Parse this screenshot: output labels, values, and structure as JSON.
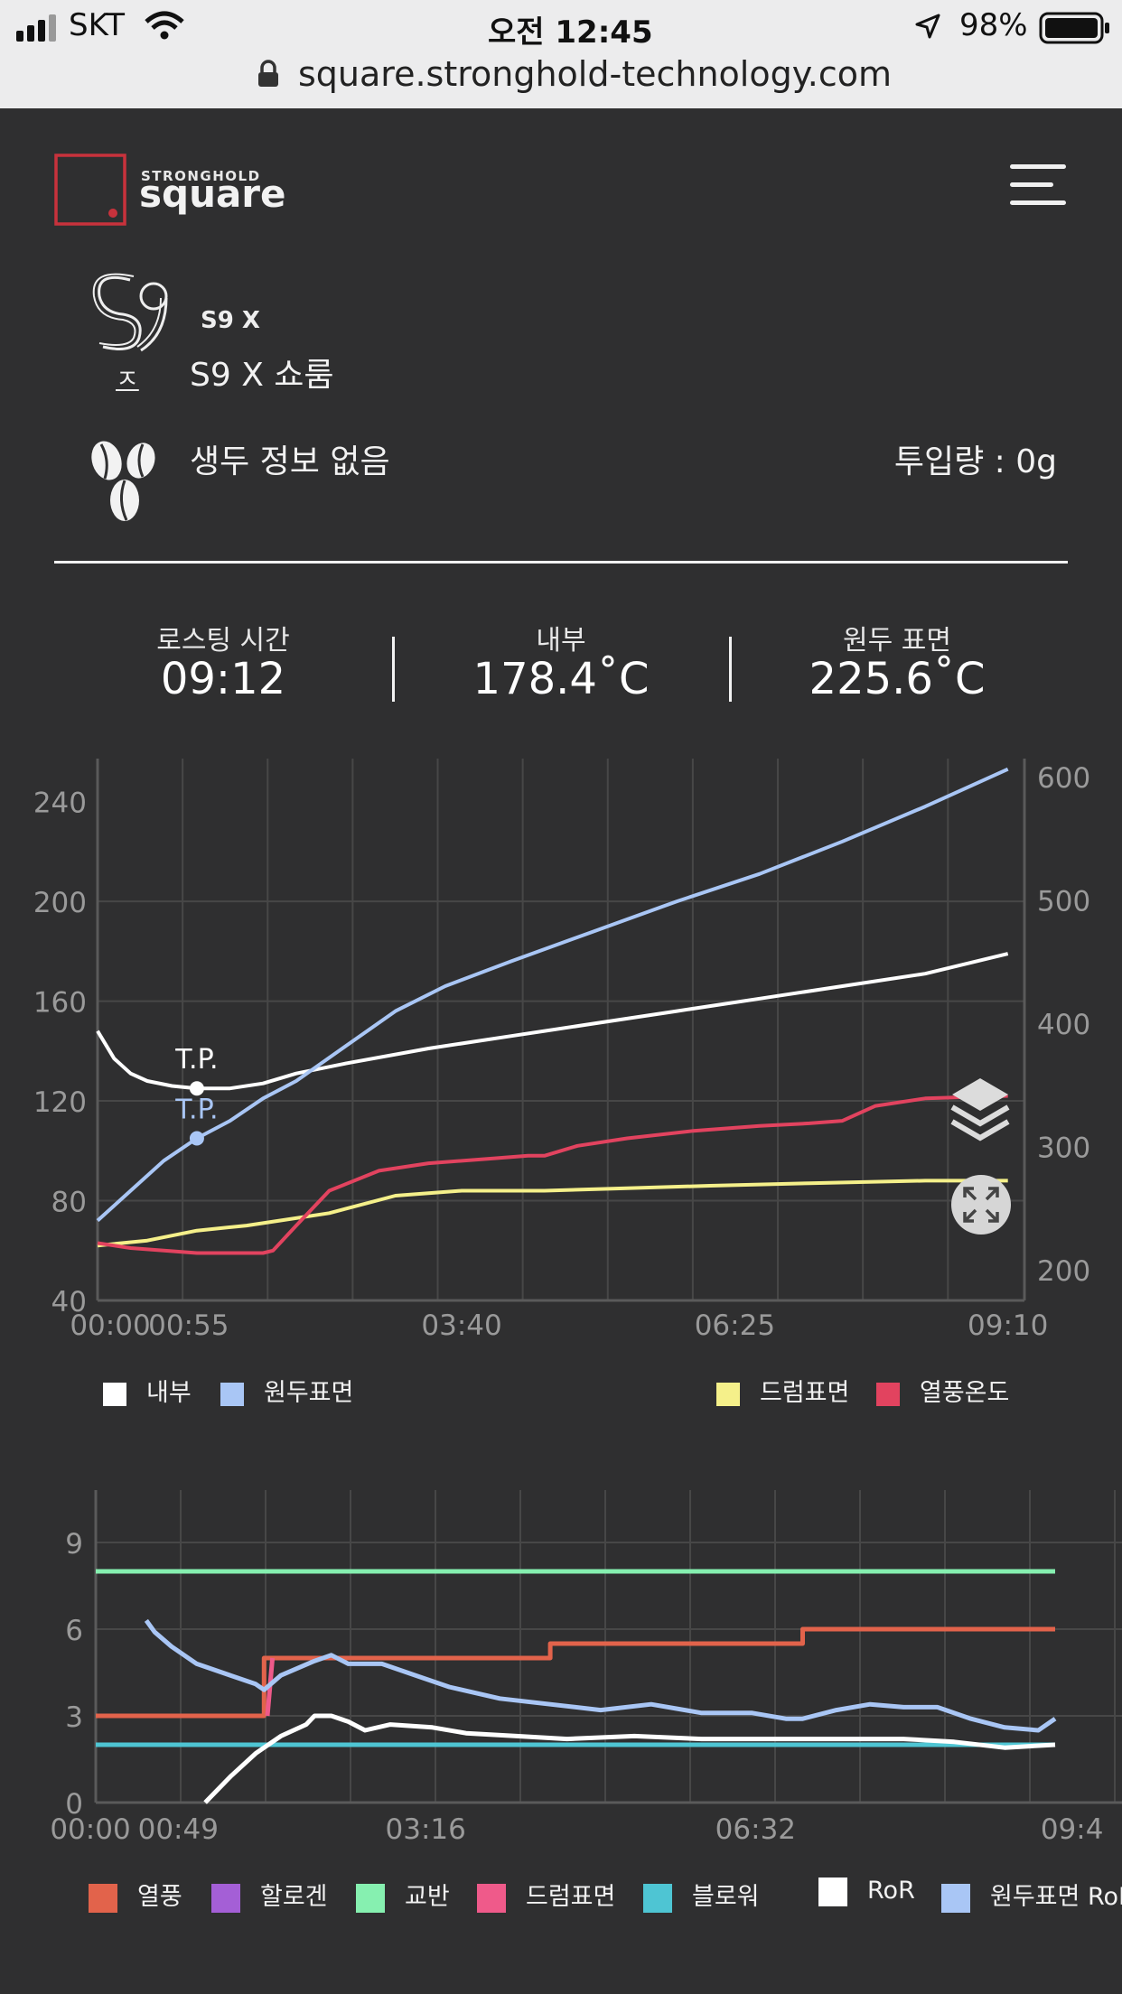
{
  "status_bar": {
    "carrier": "SKT",
    "time": "오전 12:45",
    "battery": "98%",
    "url": "square.stronghold-technology.com"
  },
  "header": {
    "logo_small": "STRONGHOLD",
    "logo_big": "square"
  },
  "machine": {
    "model_badge": "S9 X",
    "model_sub": "ㅈ",
    "name": "S9 X 쇼룸"
  },
  "bean": {
    "info": "생두 정보 없음",
    "input_label": "투입량 : 0g"
  },
  "stats": [
    {
      "label": "로스팅 시간",
      "value": "09:12"
    },
    {
      "label": "내부",
      "value": "178.4˚C"
    },
    {
      "label": "원두 표면",
      "value": "225.6˚C"
    }
  ],
  "colors": {
    "internal": "#ffffff",
    "bean_surface": "#a9c6f5",
    "drum_surface": "#f5f08a",
    "hot_air": "#e2435f",
    "heat": "#e2634b",
    "halogen": "#a45fd6",
    "agitator": "#86f0b0",
    "blower": "#4ec5d3",
    "ror": "#ffffff",
    "bean_ror": "#a9c6f5"
  },
  "chart_data": [
    {
      "type": "line",
      "x_ticks": [
        "00:00",
        "00:55",
        "03:40",
        "06:25",
        "09:10"
      ],
      "y_left_ticks": [
        "240",
        "200",
        "160",
        "120",
        "80",
        "40"
      ],
      "y_right_ticks": [
        "600",
        "500",
        "400",
        "300",
        "200"
      ],
      "ylim_left": [
        40,
        250
      ],
      "ylim_right": [
        175,
        600
      ],
      "xlim_seconds": [
        0,
        560
      ],
      "annotations": [
        {
          "text": "T.P.",
          "series": "내부",
          "x": 60,
          "y": 125
        },
        {
          "text": "T.P.",
          "series": "원두표면",
          "x": 60,
          "y": 105
        }
      ],
      "series": [
        {
          "name": "내부",
          "color": "#ffffff",
          "points": [
            [
              0,
              148
            ],
            [
              10,
              137
            ],
            [
              20,
              131
            ],
            [
              30,
              128
            ],
            [
              45,
              126
            ],
            [
              60,
              125
            ],
            [
              80,
              125
            ],
            [
              100,
              127
            ],
            [
              120,
              131
            ],
            [
              150,
              135
            ],
            [
              200,
              141
            ],
            [
              250,
              146
            ],
            [
              300,
              151
            ],
            [
              350,
              156
            ],
            [
              400,
              161
            ],
            [
              450,
              166
            ],
            [
              500,
              171
            ],
            [
              550,
              179
            ]
          ]
        },
        {
          "name": "원두표면",
          "color": "#a9c6f5",
          "points": [
            [
              0,
              72
            ],
            [
              20,
              84
            ],
            [
              40,
              96
            ],
            [
              60,
              105
            ],
            [
              80,
              112
            ],
            [
              100,
              121
            ],
            [
              120,
              128
            ],
            [
              150,
              142
            ],
            [
              180,
              156
            ],
            [
              210,
              166
            ],
            [
              250,
              176
            ],
            [
              300,
              188
            ],
            [
              350,
              200
            ],
            [
              400,
              211
            ],
            [
              450,
              224
            ],
            [
              500,
              238
            ],
            [
              550,
              253
            ]
          ]
        },
        {
          "name": "드럼표면",
          "color": "#f5f08a",
          "points": [
            [
              0,
              62
            ],
            [
              30,
              64
            ],
            [
              60,
              68
            ],
            [
              90,
              70
            ],
            [
              110,
              72
            ],
            [
              140,
              75
            ],
            [
              180,
              82
            ],
            [
              220,
              84
            ],
            [
              270,
              84
            ],
            [
              320,
              85
            ],
            [
              370,
              86
            ],
            [
              430,
              87
            ],
            [
              500,
              88
            ],
            [
              550,
              88
            ]
          ]
        },
        {
          "name": "열풍온도",
          "color": "#e2435f",
          "points": [
            [
              0,
              63
            ],
            [
              20,
              61
            ],
            [
              40,
              60
            ],
            [
              60,
              59
            ],
            [
              80,
              59
            ],
            [
              100,
              59
            ],
            [
              106,
              60
            ],
            [
              120,
              70
            ],
            [
              140,
              84
            ],
            [
              170,
              92
            ],
            [
              200,
              95
            ],
            [
              240,
              97
            ],
            [
              260,
              98
            ],
            [
              270,
              98
            ],
            [
              290,
              102
            ],
            [
              320,
              105
            ],
            [
              360,
              108
            ],
            [
              400,
              110
            ],
            [
              430,
              111
            ],
            [
              450,
              112
            ],
            [
              470,
              118
            ],
            [
              500,
              121
            ],
            [
              550,
              122
            ]
          ]
        }
      ]
    },
    {
      "type": "line",
      "x_ticks": [
        "00:00",
        "00:49",
        "03:16",
        "06:32",
        "09:4"
      ],
      "y_ticks": [
        "9",
        "6",
        "3",
        "0"
      ],
      "ylim": [
        0,
        10.5
      ],
      "xlim_seconds": [
        0,
        590
      ],
      "series": [
        {
          "name": "열풍",
          "color": "#e2634b",
          "step": true,
          "points": [
            [
              0,
              3
            ],
            [
              100,
              3
            ],
            [
              100,
              5
            ],
            [
              270,
              5
            ],
            [
              270,
              5.5
            ],
            [
              420,
              5.5
            ],
            [
              420,
              6
            ],
            [
              570,
              6
            ]
          ]
        },
        {
          "name": "할로겐",
          "color": "#a45fd6",
          "points": []
        },
        {
          "name": "교반",
          "color": "#86f0b0",
          "points": [
            [
              0,
              8
            ],
            [
              570,
              8
            ]
          ]
        },
        {
          "name": "드럼표면",
          "color": "#ef5a8a",
          "points": [
            [
              102,
              3
            ],
            [
              105,
              5
            ]
          ]
        },
        {
          "name": "블로워",
          "color": "#4ec5d3",
          "points": [
            [
              0,
              2
            ],
            [
              570,
              2
            ]
          ]
        },
        {
          "name": "RoR",
          "color": "#ffffff",
          "points": [
            [
              65,
              0
            ],
            [
              80,
              0.9
            ],
            [
              95,
              1.7
            ],
            [
              110,
              2.3
            ],
            [
              125,
              2.7
            ],
            [
              130,
              3
            ],
            [
              140,
              3
            ],
            [
              150,
              2.8
            ],
            [
              160,
              2.5
            ],
            [
              175,
              2.7
            ],
            [
              200,
              2.6
            ],
            [
              220,
              2.4
            ],
            [
              250,
              2.3
            ],
            [
              280,
              2.2
            ],
            [
              320,
              2.3
            ],
            [
              360,
              2.2
            ],
            [
              400,
              2.2
            ],
            [
              440,
              2.2
            ],
            [
              480,
              2.2
            ],
            [
              510,
              2.1
            ],
            [
              540,
              1.9
            ],
            [
              570,
              2.0
            ]
          ]
        },
        {
          "name": "원두표면 RoR",
          "color": "#a9c6f5",
          "points": [
            [
              30,
              6.3
            ],
            [
              35,
              5.9
            ],
            [
              45,
              5.4
            ],
            [
              60,
              4.8
            ],
            [
              80,
              4.4
            ],
            [
              95,
              4.1
            ],
            [
              100,
              3.9
            ],
            [
              110,
              4.4
            ],
            [
              130,
              4.9
            ],
            [
              140,
              5.1
            ],
            [
              150,
              4.8
            ],
            [
              170,
              4.8
            ],
            [
              190,
              4.4
            ],
            [
              210,
              4.0
            ],
            [
              240,
              3.6
            ],
            [
              270,
              3.4
            ],
            [
              300,
              3.2
            ],
            [
              330,
              3.4
            ],
            [
              360,
              3.1
            ],
            [
              390,
              3.1
            ],
            [
              410,
              2.9
            ],
            [
              420,
              2.9
            ],
            [
              440,
              3.2
            ],
            [
              460,
              3.4
            ],
            [
              480,
              3.3
            ],
            [
              500,
              3.3
            ],
            [
              520,
              2.9
            ],
            [
              540,
              2.6
            ],
            [
              560,
              2.5
            ],
            [
              570,
              2.9
            ]
          ]
        }
      ]
    }
  ]
}
